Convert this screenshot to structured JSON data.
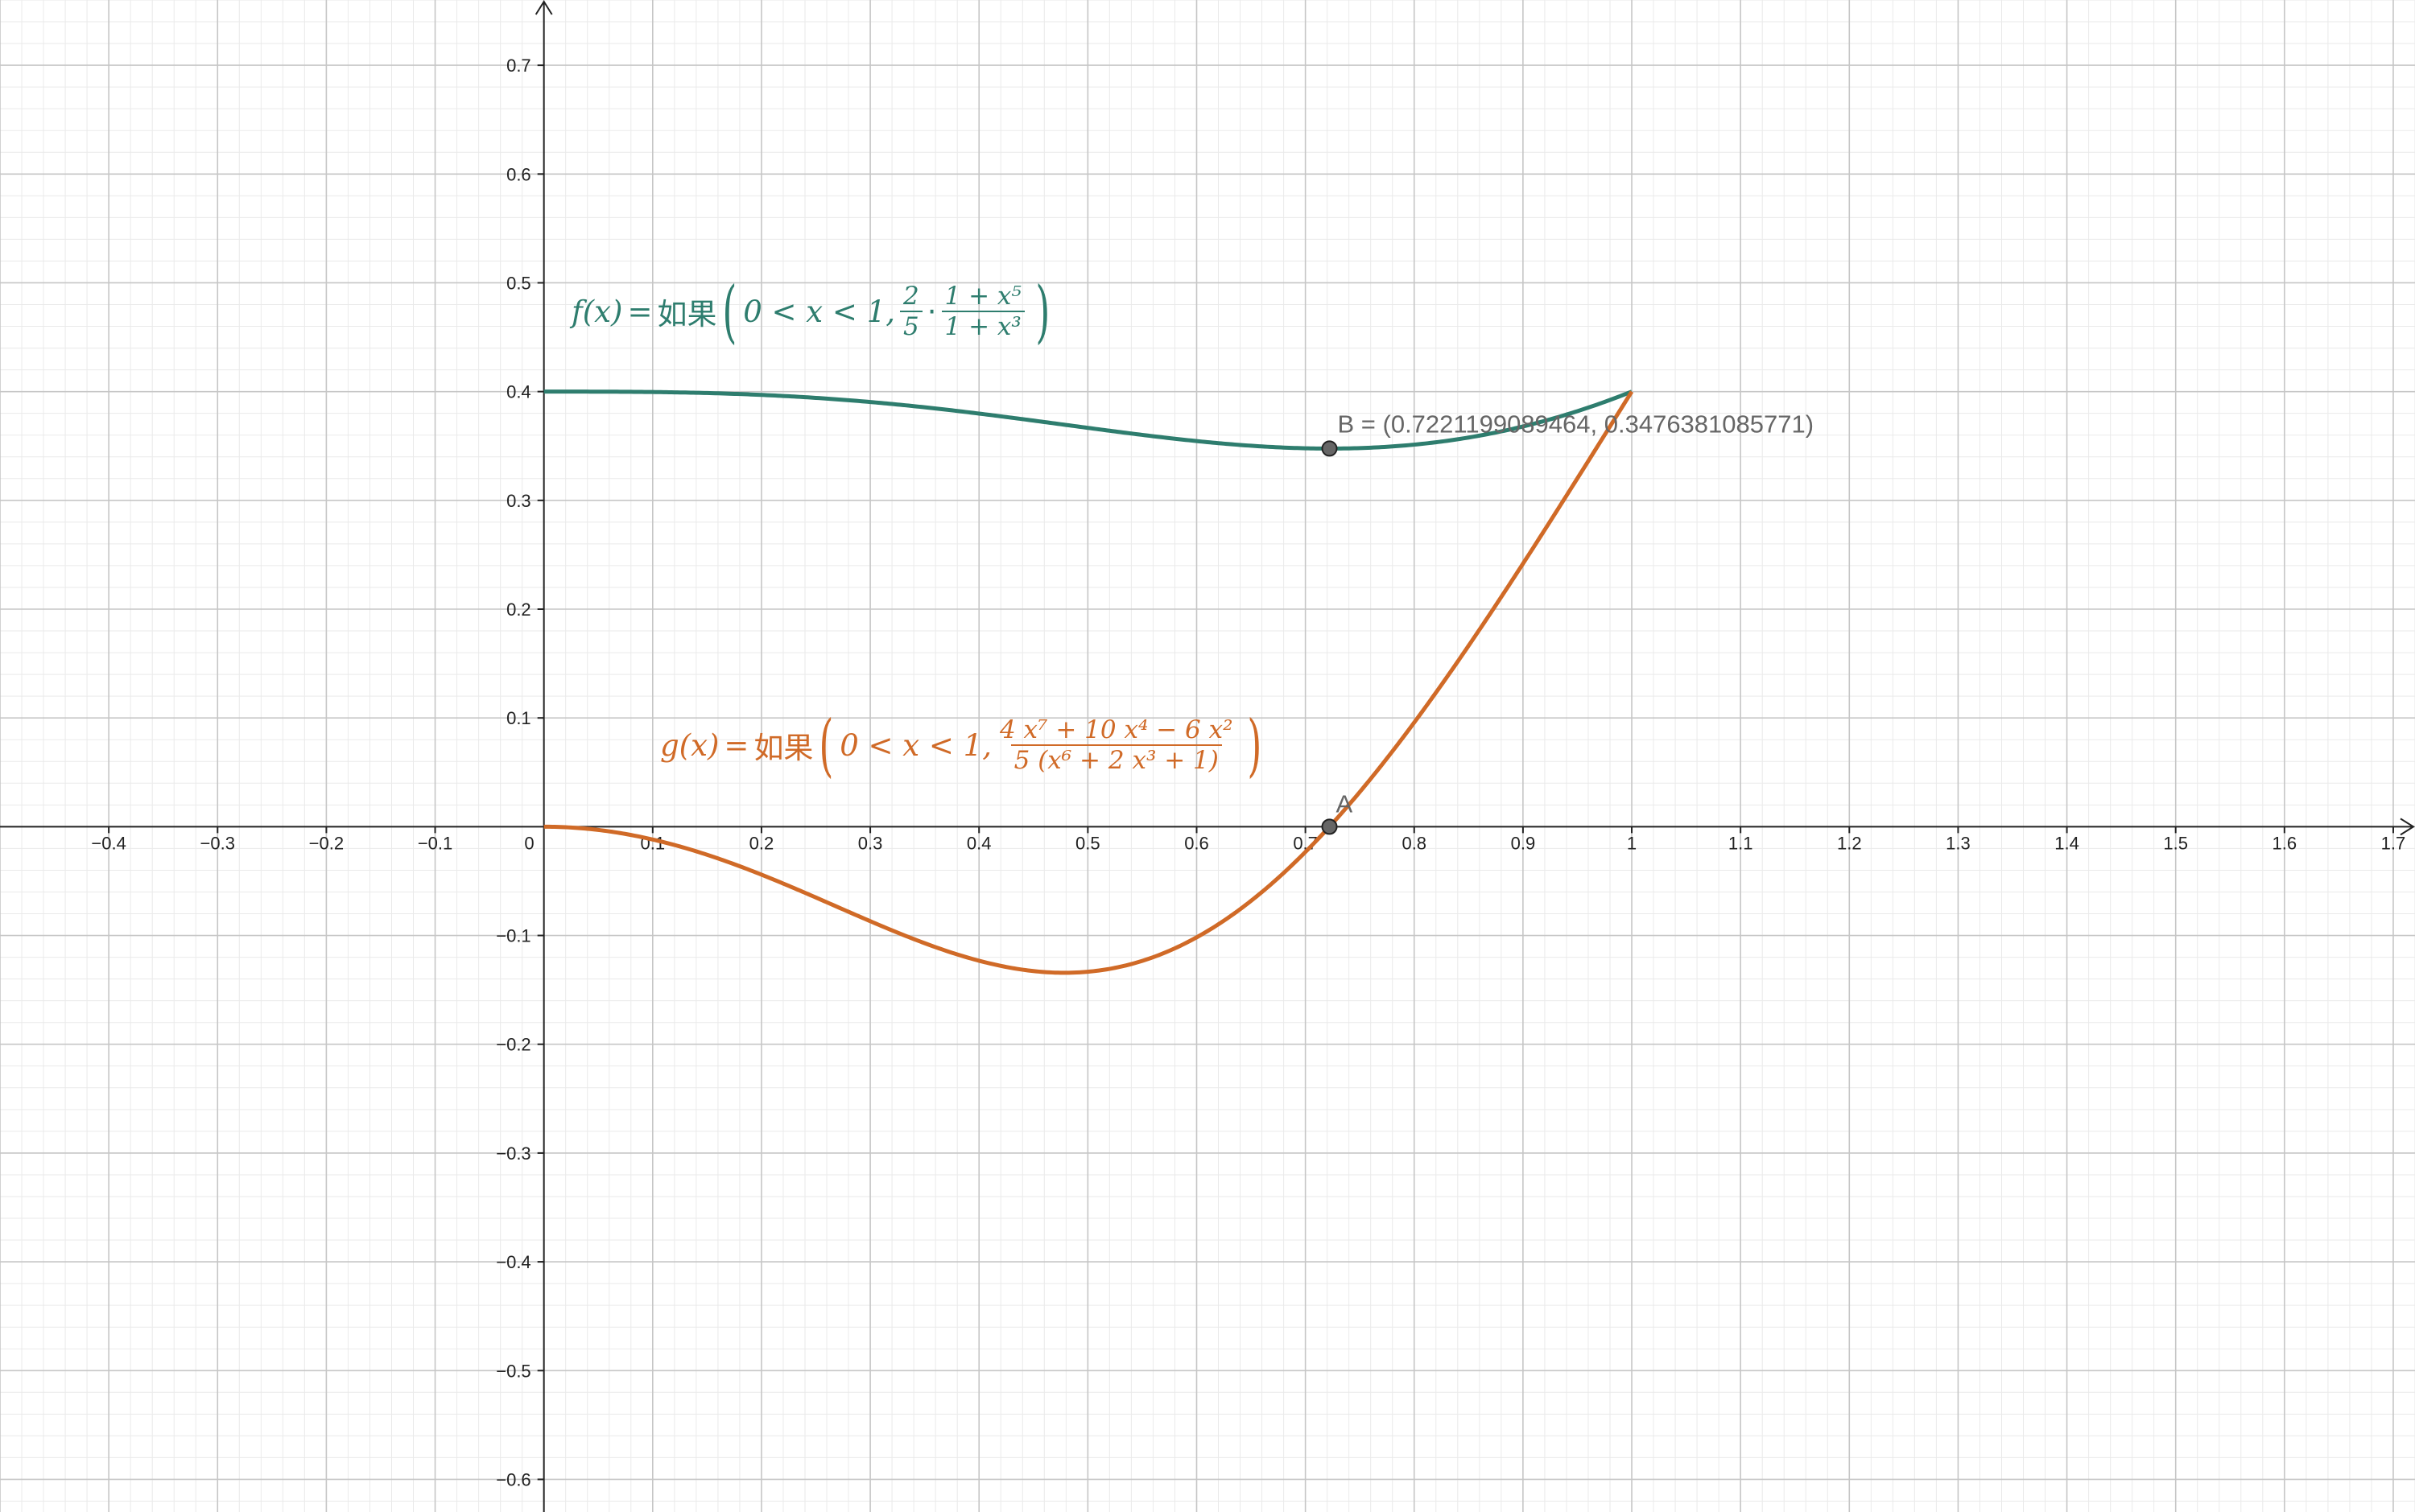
{
  "colors": {
    "f": "#2e7d6e",
    "g": "#d06a27",
    "axis": "#222222",
    "grid_major": "#c6c6c6",
    "grid_minor": "#eaeaea",
    "point_fill": "#666666",
    "point_label": "#666666"
  },
  "chart_data": {
    "type": "line",
    "title": "",
    "xlabel": "",
    "ylabel": "",
    "xlim": [
      -0.5,
      1.72
    ],
    "ylim": [
      -0.63,
      0.76
    ],
    "grid": true,
    "x_ticks": [
      -0.4,
      -0.3,
      -0.2,
      -0.1,
      0,
      0.1,
      0.2,
      0.3,
      0.4,
      0.5,
      0.6,
      0.7,
      0.8,
      0.9,
      1,
      1.1,
      1.2,
      1.3,
      1.4,
      1.5,
      1.6,
      1.7
    ],
    "x_tick_labels": [
      "−0.4",
      "−0.3",
      "−0.2",
      "−0.1",
      "0",
      "0.1",
      "0.2",
      "0.3",
      "0.4",
      "0.5",
      "0.6",
      "0.7",
      "0.8",
      "0.9",
      "1",
      "1.1",
      "1.2",
      "1.3",
      "1.4",
      "1.5",
      "1.6",
      "1.7"
    ],
    "y_ticks": [
      0.7,
      0.6,
      0.5,
      0.4,
      0.3,
      0.2,
      0.1,
      -0.1,
      -0.2,
      -0.3,
      -0.4,
      -0.5,
      -0.6
    ],
    "y_tick_labels": [
      "0.7",
      "0.6",
      "0.5",
      "0.4",
      "0.3",
      "0.2",
      "0.1",
      "−0.1",
      "−0.2",
      "−0.3",
      "−0.4",
      "−0.5",
      "−0.6"
    ],
    "series": [
      {
        "name": "f",
        "domain": [
          0,
          1
        ],
        "x": [
          0,
          0.1,
          0.2,
          0.3,
          0.4,
          0.5,
          0.6,
          0.7,
          0.8,
          0.9,
          1
        ],
        "y": [
          0.4,
          0.3996,
          0.3969,
          0.3898,
          0.3799,
          0.3667,
          0.3559,
          0.3484,
          0.3505,
          0.3663,
          0.4
        ]
      },
      {
        "name": "g",
        "domain": [
          0,
          1
        ],
        "x": [
          0,
          0.1,
          0.2,
          0.3,
          0.4,
          0.5,
          0.6,
          0.7,
          0.8,
          0.9,
          1
        ],
        "y": [
          0,
          -0.0118,
          -0.0432,
          -0.0833,
          -0.1177,
          -0.1301,
          -0.1068,
          -0.0199,
          0.0995,
          0.2538,
          0.4
        ]
      }
    ],
    "points": [
      {
        "name": "A",
        "x": 0.7221199089464,
        "y": 0,
        "label": "A"
      },
      {
        "name": "B",
        "x": 0.7221199089464,
        "y": 0.3476381085771,
        "label": "B = (0.7221199089464, 0.3476381085771)"
      }
    ],
    "annotations": {
      "f_label": {
        "lhs": "f(x)",
        "eq": "=",
        "func": "如果",
        "cond": "0 < x < 1,",
        "frac1_num": "2",
        "frac1_den": "5",
        "dot": "·",
        "frac2_num": "1 + x⁵",
        "frac2_den": "1 + x³",
        "open": "(",
        "close": ")"
      },
      "g_label": {
        "lhs": "g(x)",
        "eq": "=",
        "func": "如果",
        "cond": "0 < x < 1,",
        "frac_num": "4 x⁷ + 10 x⁴ − 6 x²",
        "frac_den": "5 (x⁶ + 2 x³ + 1)",
        "open": "(",
        "close": ")"
      }
    }
  }
}
